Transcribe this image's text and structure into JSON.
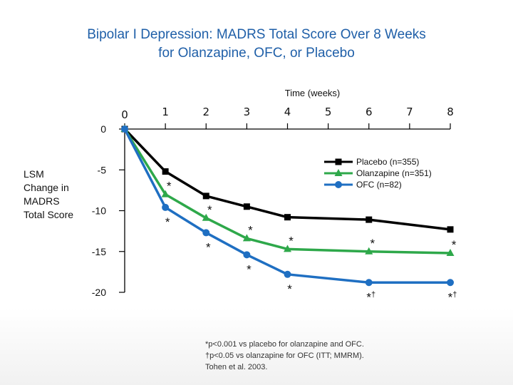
{
  "title_line1": "Bipolar I Depression: MADRS Total Score Over 8 Weeks",
  "title_line2": "for Olanzapine, OFC, or Placebo",
  "ylabel_lines": [
    "LSM",
    "Change in",
    "MADRS",
    "Total Score"
  ],
  "footnotes": [
    "*p<0.001 vs placebo for olanzapine and OFC.",
    "†p<0.05 vs olanzapine for OFC (ITT; MMRM).",
    "Tohen et al. 2003."
  ],
  "colors": {
    "title": "#1f5fa8",
    "placebo": "#000000",
    "olanzapine": "#2ea84a",
    "ofc": "#1f6fc2",
    "axis": "#000000"
  },
  "chart_data": {
    "type": "line",
    "xlabel": "Time (weeks)",
    "ylabel": "LSM Change in MADRS Total Score",
    "x": [
      0,
      1,
      2,
      3,
      4,
      6,
      8
    ],
    "x_ticks": [
      0,
      1,
      2,
      3,
      4,
      5,
      6,
      7,
      8
    ],
    "y_ticks": [
      0,
      -5,
      -10,
      -15,
      -20
    ],
    "xlim": [
      0,
      8
    ],
    "ylim": [
      -20,
      0
    ],
    "grid": false,
    "legend_position": "top-right",
    "series": [
      {
        "name": "Placebo (n=355)",
        "color": "#000000",
        "marker": "square",
        "values": [
          0,
          -5.2,
          -8.2,
          -9.5,
          -10.8,
          -11.1,
          -12.3
        ],
        "annotations": [
          "",
          "",
          "",
          "",
          "",
          "",
          ""
        ]
      },
      {
        "name": "Olanzapine (n=351)",
        "color": "#2ea84a",
        "marker": "triangle",
        "values": [
          0,
          -8.0,
          -10.9,
          -13.4,
          -14.7,
          -15.0,
          -15.2
        ],
        "annotations": [
          "",
          "*",
          "*",
          "*",
          "*",
          "*",
          "*"
        ]
      },
      {
        "name": "OFC (n=82)",
        "color": "#1f6fc2",
        "marker": "circle",
        "values": [
          0,
          -9.6,
          -12.7,
          -15.4,
          -17.8,
          -18.8,
          -18.8
        ],
        "annotations": [
          "",
          "*",
          "*",
          "*",
          "*",
          "*†",
          "*†"
        ]
      }
    ]
  }
}
